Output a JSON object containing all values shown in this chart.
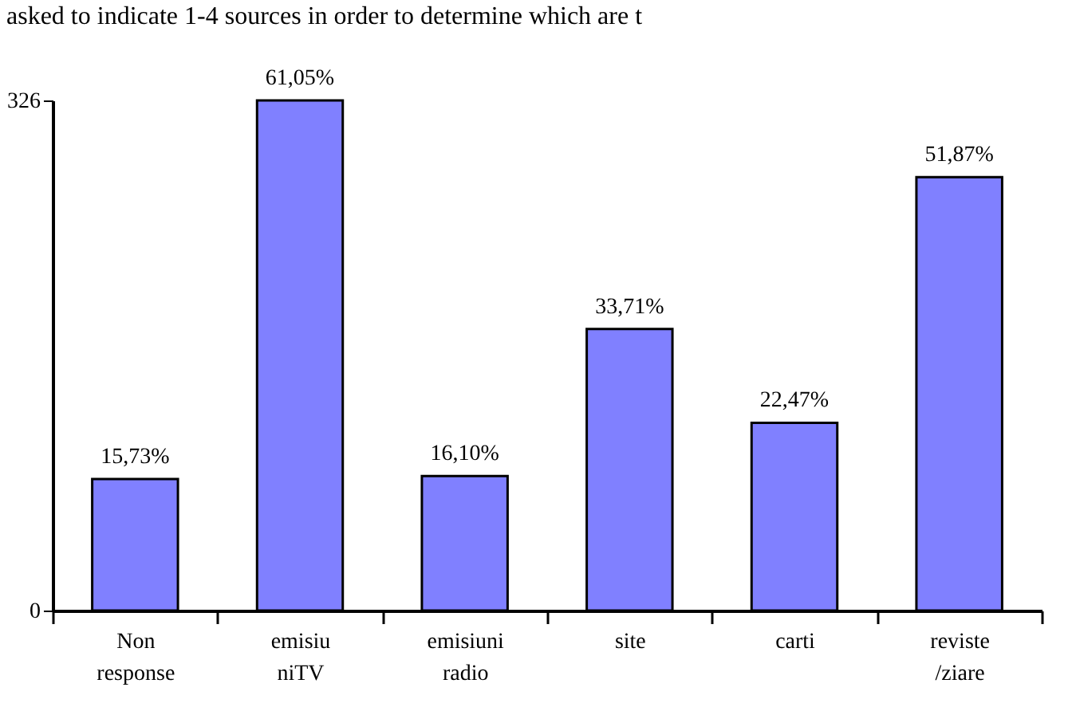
{
  "chart_data": {
    "type": "bar",
    "title": "asked to indicate 1-4 sources in order to determine which are t",
    "categories": [
      "Non response",
      "emisiu niTV",
      "emisiuni radio",
      "site",
      "carti",
      "reviste /ziare"
    ],
    "values": [
      84,
      326,
      86,
      180,
      120,
      277
    ],
    "color": "#8080ff",
    "ylim": [
      0,
      326
    ],
    "yticks": [
      0,
      326
    ],
    "annotations": [
      {
        "text": "15,73%",
        "x": "Non response",
        "y": 84
      },
      {
        "text": "61,05%",
        "x": "emisiu niTV",
        "y": 326
      },
      {
        "text": "16,10%",
        "x": "emisiuni radio",
        "y": 86
      },
      {
        "text": "33,71%",
        "x": "site",
        "y": 180
      },
      {
        "text": "22,47%",
        "x": "carti",
        "y": 120
      },
      {
        "text": "51,87%",
        "x": "reviste /ziare",
        "y": 277
      }
    ]
  }
}
